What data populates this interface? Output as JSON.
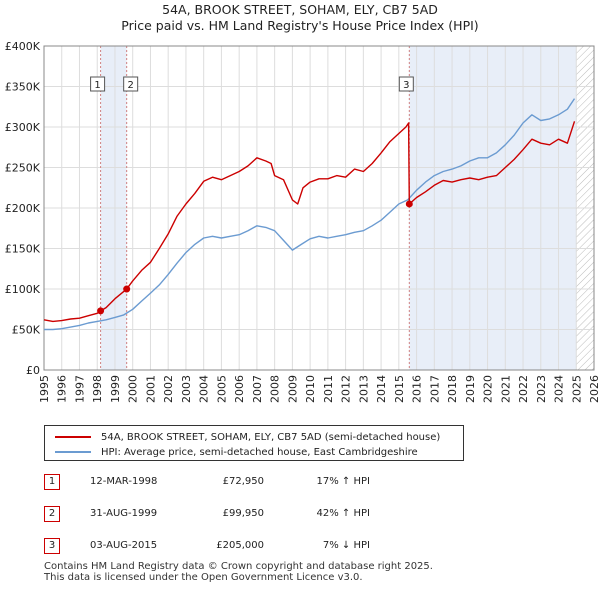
{
  "title_line1": "54A, BROOK STREET, SOHAM, ELY, CB7 5AD",
  "title_line2": "Price paid vs. HM Land Registry's House Price Index (HPI)",
  "colors": {
    "property_line": "#cc0000",
    "hpi_line": "#6b9bd1",
    "shade": "#e8eef8",
    "vline": "#d08080",
    "grid": "#dddddd",
    "hatch": "#bbbbbb"
  },
  "chart_data": {
    "type": "line",
    "title": "54A, BROOK STREET, SOHAM, ELY, CB7 5AD — Price paid vs. HM Land Registry's House Price Index (HPI)",
    "xlabel": "",
    "ylabel": "",
    "xlim": [
      1995,
      2026
    ],
    "ylim": [
      0,
      400000
    ],
    "y_ticks": [
      0,
      50000,
      100000,
      150000,
      200000,
      250000,
      300000,
      350000,
      400000
    ],
    "y_tick_labels": [
      "£0",
      "£50K",
      "£100K",
      "£150K",
      "£200K",
      "£250K",
      "£300K",
      "£350K",
      "£400K"
    ],
    "x_ticks": [
      1995,
      1996,
      1997,
      1998,
      1999,
      2000,
      2001,
      2002,
      2003,
      2004,
      2005,
      2006,
      2007,
      2008,
      2009,
      2010,
      2011,
      2012,
      2013,
      2014,
      2015,
      2016,
      2017,
      2018,
      2019,
      2020,
      2021,
      2022,
      2023,
      2024,
      2025,
      2026
    ],
    "x_tick_labels": [
      "1995",
      "1996",
      "1997",
      "1998",
      "1999",
      "2000",
      "2001",
      "2002",
      "2003",
      "2004",
      "2005",
      "2006",
      "2007",
      "2008",
      "2009",
      "2010",
      "2011",
      "2012",
      "2013",
      "2014",
      "2015",
      "2016",
      "2017",
      "2018",
      "2019",
      "2020",
      "2021",
      "2022",
      "2023",
      "2024",
      "2025",
      "2026"
    ],
    "grid": true,
    "shaded_ranges": [
      [
        1998.19,
        1999.66
      ],
      [
        2015.59,
        2025.0
      ]
    ],
    "future_hatch_from": 2025.0,
    "series": [
      {
        "name": "54A, BROOK STREET, SOHAM, ELY, CB7 5AD (semi-detached house)",
        "x": [
          1995.0,
          1995.5,
          1996.0,
          1996.5,
          1997.0,
          1997.5,
          1998.0,
          1998.19,
          1998.5,
          1999.0,
          1999.5,
          1999.66,
          2000.0,
          2000.5,
          2001.0,
          2001.5,
          2002.0,
          2002.5,
          2003.0,
          2003.5,
          2004.0,
          2004.5,
          2005.0,
          2005.5,
          2006.0,
          2006.5,
          2007.0,
          2007.5,
          2007.8,
          2008.0,
          2008.5,
          2009.0,
          2009.3,
          2009.6,
          2010.0,
          2010.5,
          2011.0,
          2011.5,
          2012.0,
          2012.5,
          2013.0,
          2013.5,
          2014.0,
          2014.5,
          2015.0,
          2015.4,
          2015.55,
          2015.59,
          2016.0,
          2016.5,
          2017.0,
          2017.5,
          2018.0,
          2018.5,
          2019.0,
          2019.5,
          2020.0,
          2020.5,
          2021.0,
          2021.5,
          2022.0,
          2022.5,
          2023.0,
          2023.5,
          2024.0,
          2024.5,
          2024.9
        ],
        "values": [
          62000,
          60000,
          61000,
          63000,
          64000,
          67000,
          70000,
          72950,
          77000,
          88000,
          97000,
          99950,
          110000,
          123000,
          133000,
          150000,
          168000,
          190000,
          205000,
          218000,
          233000,
          238000,
          235000,
          240000,
          245000,
          252000,
          262000,
          258000,
          255000,
          240000,
          235000,
          210000,
          205000,
          225000,
          232000,
          236000,
          236000,
          240000,
          238000,
          248000,
          245000,
          255000,
          268000,
          282000,
          292000,
          300000,
          305000,
          205000,
          213000,
          220000,
          228000,
          234000,
          232000,
          235000,
          237000,
          235000,
          238000,
          240000,
          250000,
          260000,
          272000,
          285000,
          280000,
          278000,
          285000,
          280000,
          307000
        ]
      },
      {
        "name": "HPI: Average price, semi-detached house, East Cambridgeshire",
        "x": [
          1995.0,
          1995.5,
          1996.0,
          1996.5,
          1997.0,
          1997.5,
          1998.0,
          1998.5,
          1999.0,
          1999.5,
          2000.0,
          2000.5,
          2001.0,
          2001.5,
          2002.0,
          2002.5,
          2003.0,
          2003.5,
          2004.0,
          2004.5,
          2005.0,
          2005.5,
          2006.0,
          2006.5,
          2007.0,
          2007.5,
          2008.0,
          2008.5,
          2009.0,
          2009.5,
          2010.0,
          2010.5,
          2011.0,
          2011.5,
          2012.0,
          2012.5,
          2013.0,
          2013.5,
          2014.0,
          2014.5,
          2015.0,
          2015.5,
          2016.0,
          2016.5,
          2017.0,
          2017.5,
          2018.0,
          2018.5,
          2019.0,
          2019.5,
          2020.0,
          2020.5,
          2021.0,
          2021.5,
          2022.0,
          2022.5,
          2023.0,
          2023.5,
          2024.0,
          2024.5,
          2024.9
        ],
        "values": [
          50000,
          50000,
          51000,
          53000,
          55000,
          58000,
          60000,
          62000,
          65000,
          68000,
          75000,
          85000,
          95000,
          105000,
          118000,
          132000,
          145000,
          155000,
          163000,
          165000,
          163000,
          165000,
          167000,
          172000,
          178000,
          176000,
          172000,
          160000,
          148000,
          155000,
          162000,
          165000,
          163000,
          165000,
          167000,
          170000,
          172000,
          178000,
          185000,
          195000,
          205000,
          210000,
          222000,
          232000,
          240000,
          245000,
          248000,
          252000,
          258000,
          262000,
          262000,
          268000,
          278000,
          290000,
          305000,
          315000,
          308000,
          310000,
          315000,
          322000,
          335000
        ]
      }
    ],
    "sales": [
      {
        "num": "1",
        "x": 1998.19,
        "value": 72950
      },
      {
        "num": "2",
        "x": 1999.66,
        "value": 99950
      },
      {
        "num": "3",
        "x": 2015.59,
        "value": 205000
      }
    ]
  },
  "legend": {
    "property_label": "54A, BROOK STREET, SOHAM, ELY, CB7 5AD (semi-detached house)",
    "hpi_label": "HPI: Average price, semi-detached house, East Cambridgeshire"
  },
  "sales_table": [
    {
      "num": "1",
      "date": "12-MAR-1998",
      "price": "£72,950",
      "hpi": "17% ↑ HPI"
    },
    {
      "num": "2",
      "date": "31-AUG-1999",
      "price": "£99,950",
      "hpi": "42% ↑ HPI"
    },
    {
      "num": "3",
      "date": "03-AUG-2015",
      "price": "£205,000",
      "hpi": "7% ↓ HPI"
    }
  ],
  "footer": {
    "line1": "Contains HM Land Registry data © Crown copyright and database right 2025.",
    "line2": "This data is licensed under the Open Government Licence v3.0."
  }
}
